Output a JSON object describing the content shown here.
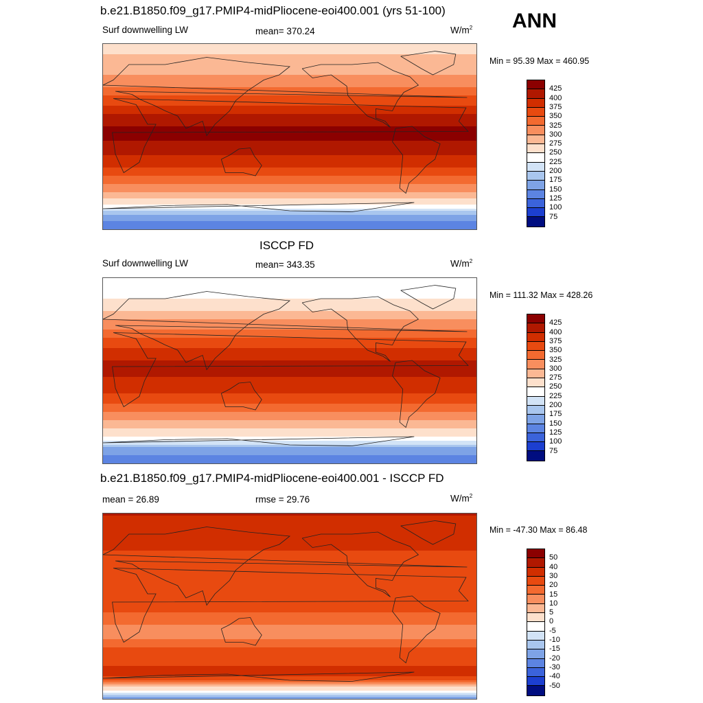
{
  "page": {
    "season": "ANN"
  },
  "panels": [
    {
      "title": "b.e21.B1850.f09_g17.PMIP4-midPliocene-eoi400.001 (yrs 51-100)",
      "variable": "Surf downwelling LW",
      "stat": "mean= 370.24",
      "units": "W/m",
      "units_sup": "2",
      "minmax": "Min =  95.39 Max = 460.95",
      "colorbar_labels": [
        "425",
        "400",
        "375",
        "350",
        "325",
        "300",
        "275",
        "250",
        "225",
        "200",
        "175",
        "150",
        "125",
        "100",
        "75"
      ]
    },
    {
      "title": "ISCCP FD",
      "variable": "Surf downwelling LW",
      "stat": "mean= 343.35",
      "units": "W/m",
      "units_sup": "2",
      "minmax": "Min = 111.32 Max = 428.26",
      "colorbar_labels": [
        "425",
        "400",
        "375",
        "350",
        "325",
        "300",
        "275",
        "250",
        "225",
        "200",
        "175",
        "150",
        "125",
        "100",
        "75"
      ]
    },
    {
      "title": "b.e21.B1850.f09_g17.PMIP4-midPliocene-eoi400.001 - ISCCP FD",
      "variable": "mean =  26.89",
      "stat": "rmse =  29.76",
      "units": "W/m",
      "units_sup": "2",
      "minmax": "Min = -47.30 Max =  86.48",
      "colorbar_labels": [
        "50",
        "40",
        "30",
        "20",
        "15",
        "10",
        "5",
        "0",
        "-5",
        "-10",
        "-15",
        "-20",
        "-30",
        "-40",
        "-50"
      ]
    }
  ],
  "colors": {
    "scale": [
      "#8b0000",
      "#b01800",
      "#d12e00",
      "#e84a10",
      "#f36a30",
      "#f88e5e",
      "#fbb894",
      "#fde0cc",
      "#ffffff",
      "#d2e3f6",
      "#a9c6ee",
      "#7ea3e6",
      "#5c84e2",
      "#3b63db",
      "#1c3fd0",
      "#0a25b8",
      "#000d80"
    ],
    "cbar_abs": [
      "#8b0000",
      "#b01800",
      "#d12e00",
      "#e84a10",
      "#f36a30",
      "#f88e5e",
      "#fbb894",
      "#fde0cc",
      "#ffffff",
      "#d2e3f6",
      "#a9c6ee",
      "#7ea3e6",
      "#5c84e2",
      "#3b63db",
      "#1c3fd0",
      "#000d80"
    ]
  },
  "chart_data": [
    {
      "type": "heatmap",
      "title": "b.e21.B1850.f09_g17.PMIP4-midPliocene-eoi400.001 (yrs 51-100)",
      "variable": "Surf downwelling LW",
      "units": "W/m2",
      "mean": 370.24,
      "min": 95.39,
      "max": 460.95,
      "levels": [
        75,
        100,
        125,
        150,
        175,
        200,
        225,
        250,
        275,
        300,
        325,
        350,
        375,
        400,
        425
      ],
      "lat_bands": [
        {
          "lat": 90,
          "value": 270
        },
        {
          "lat": 70,
          "value": 280
        },
        {
          "lat": 55,
          "value": 310
        },
        {
          "lat": 40,
          "value": 350
        },
        {
          "lat": 25,
          "value": 395
        },
        {
          "lat": 10,
          "value": 425
        },
        {
          "lat": 0,
          "value": 430
        },
        {
          "lat": -10,
          "value": 415
        },
        {
          "lat": -25,
          "value": 385
        },
        {
          "lat": -40,
          "value": 340
        },
        {
          "lat": -55,
          "value": 290
        },
        {
          "lat": -65,
          "value": 250
        },
        {
          "lat": -75,
          "value": 170
        },
        {
          "lat": -90,
          "value": 120
        }
      ]
    },
    {
      "type": "heatmap",
      "title": "ISCCP FD",
      "variable": "Surf downwelling LW",
      "units": "W/m2",
      "mean": 343.35,
      "min": 111.32,
      "max": 428.26,
      "levels": [
        75,
        100,
        125,
        150,
        175,
        200,
        225,
        250,
        275,
        300,
        325,
        350,
        375,
        400,
        425
      ],
      "lat_bands": [
        {
          "lat": 90,
          "value": 235
        },
        {
          "lat": 70,
          "value": 250
        },
        {
          "lat": 55,
          "value": 285
        },
        {
          "lat": 40,
          "value": 330
        },
        {
          "lat": 25,
          "value": 370
        },
        {
          "lat": 10,
          "value": 400
        },
        {
          "lat": 0,
          "value": 405
        },
        {
          "lat": -10,
          "value": 395
        },
        {
          "lat": -25,
          "value": 365
        },
        {
          "lat": -40,
          "value": 320
        },
        {
          "lat": -55,
          "value": 275
        },
        {
          "lat": -65,
          "value": 240
        },
        {
          "lat": -75,
          "value": 160
        },
        {
          "lat": -90,
          "value": 130
        }
      ]
    },
    {
      "type": "heatmap",
      "title": "b.e21.B1850.f09_g17.PMIP4-midPliocene-eoi400.001 - ISCCP FD",
      "units": "W/m2",
      "mean": 26.89,
      "rmse": 29.76,
      "min": -47.3,
      "max": 86.48,
      "levels": [
        -50,
        -40,
        -30,
        -20,
        -15,
        -10,
        -5,
        0,
        5,
        10,
        15,
        20,
        30,
        40,
        50
      ],
      "lat_bands": [
        {
          "lat": 90,
          "value": 40
        },
        {
          "lat": 70,
          "value": 38
        },
        {
          "lat": 55,
          "value": 30
        },
        {
          "lat": 40,
          "value": 25
        },
        {
          "lat": 25,
          "value": 20
        },
        {
          "lat": 10,
          "value": 25
        },
        {
          "lat": 0,
          "value": 22
        },
        {
          "lat": -10,
          "value": 18
        },
        {
          "lat": -25,
          "value": 12
        },
        {
          "lat": -40,
          "value": 20
        },
        {
          "lat": -55,
          "value": 28
        },
        {
          "lat": -65,
          "value": 35
        },
        {
          "lat": -75,
          "value": 10
        },
        {
          "lat": -90,
          "value": -20
        }
      ]
    }
  ]
}
